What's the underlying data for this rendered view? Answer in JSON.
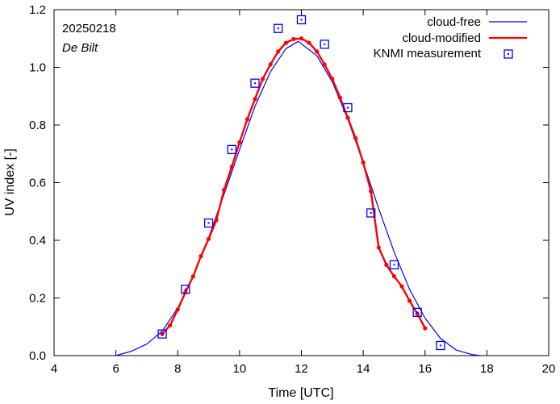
{
  "chart_data": {
    "type": "line",
    "title": "",
    "xlabel": "Time  [UTC]",
    "ylabel": "UV index  [-]",
    "xlim": [
      4,
      20
    ],
    "ylim": [
      0,
      1.2
    ],
    "xticks": [
      4,
      6,
      8,
      10,
      12,
      14,
      16,
      18,
      20
    ],
    "yticks": [
      0.0,
      0.2,
      0.4,
      0.6,
      0.8,
      1.0,
      1.2
    ],
    "ytick_labels": [
      "0.0",
      "0.2",
      "0.4",
      "0.6",
      "0.8",
      "1.0",
      "1.2"
    ],
    "annotations": {
      "date": "20250218",
      "location": "De Bilt"
    },
    "legend_position": "top-right",
    "series": [
      {
        "name": "cloud-free",
        "style": "line",
        "color": "#0000ff",
        "x": [
          6.0,
          6.5,
          7.0,
          7.5,
          8.0,
          8.5,
          9.0,
          9.5,
          10.0,
          10.5,
          11.0,
          11.5,
          11.9,
          12.5,
          13.0,
          13.5,
          14.0,
          14.5,
          15.0,
          15.5,
          16.0,
          16.5,
          17.0,
          17.5,
          17.8
        ],
        "y": [
          0.0,
          0.015,
          0.04,
          0.085,
          0.165,
          0.275,
          0.41,
          0.56,
          0.715,
          0.865,
          0.985,
          1.065,
          1.09,
          1.04,
          0.95,
          0.82,
          0.67,
          0.51,
          0.36,
          0.23,
          0.13,
          0.06,
          0.02,
          0.004,
          0.0
        ]
      },
      {
        "name": "cloud-modified",
        "style": "line-markers",
        "color": "#ff0000",
        "x": [
          7.5,
          7.75,
          8.0,
          8.25,
          8.5,
          8.75,
          9.0,
          9.25,
          9.5,
          9.75,
          10.0,
          10.25,
          10.5,
          10.75,
          11.0,
          11.25,
          11.5,
          11.75,
          12.0,
          12.25,
          12.5,
          12.75,
          13.0,
          13.25,
          13.5,
          13.75,
          14.0,
          14.25,
          14.5,
          14.75,
          15.0,
          15.25,
          15.5,
          15.75,
          16.0
        ],
        "y": [
          0.075,
          0.105,
          0.16,
          0.22,
          0.275,
          0.345,
          0.405,
          0.47,
          0.575,
          0.655,
          0.74,
          0.82,
          0.89,
          0.96,
          1.01,
          1.055,
          1.085,
          1.098,
          1.1,
          1.085,
          1.055,
          1.01,
          0.96,
          0.895,
          0.825,
          0.755,
          0.67,
          0.57,
          0.375,
          0.315,
          0.275,
          0.24,
          0.19,
          0.145,
          0.095
        ]
      },
      {
        "name": "KNMI measurement",
        "style": "markers",
        "color": "#0000ff",
        "x": [
          7.5,
          8.25,
          9.0,
          9.75,
          10.5,
          11.25,
          12.0,
          12.75,
          13.5,
          14.25,
          15.0,
          15.75,
          16.5
        ],
        "y": [
          0.075,
          0.23,
          0.46,
          0.715,
          0.945,
          1.135,
          1.165,
          1.08,
          0.86,
          0.495,
          0.315,
          0.15,
          0.035
        ]
      }
    ]
  }
}
